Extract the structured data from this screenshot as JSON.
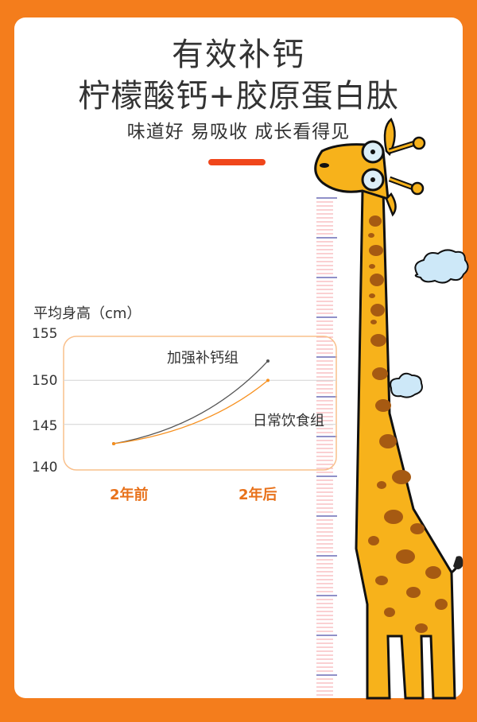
{
  "header": {
    "title_line1": "有效补钙",
    "title_line2": "柠檬酸钙+胶原蛋白肽",
    "subtitle": "味道好  易吸收  成长看得见"
  },
  "colors": {
    "background": "#f47d1c",
    "accent": "#f0461b",
    "series_supplement": "#555555",
    "series_daily": "#f7901e",
    "frame": "#f9c08c"
  },
  "chart_data": {
    "type": "line",
    "ylabel": "平均身高（cm）",
    "categories": [
      "2年前",
      "2年后"
    ],
    "ylim": [
      140,
      155
    ],
    "yticks": [
      155,
      150,
      145,
      140
    ],
    "grid": true,
    "series": [
      {
        "name": "加强补钙组",
        "values": [
          142.8,
          152.2
        ],
        "color": "#555555"
      },
      {
        "name": "日常饮食组",
        "values": [
          142.8,
          150
        ],
        "color": "#f7901e"
      }
    ]
  },
  "decoration": {
    "illustration": "giraffe-height-ruler",
    "clouds": 2
  }
}
